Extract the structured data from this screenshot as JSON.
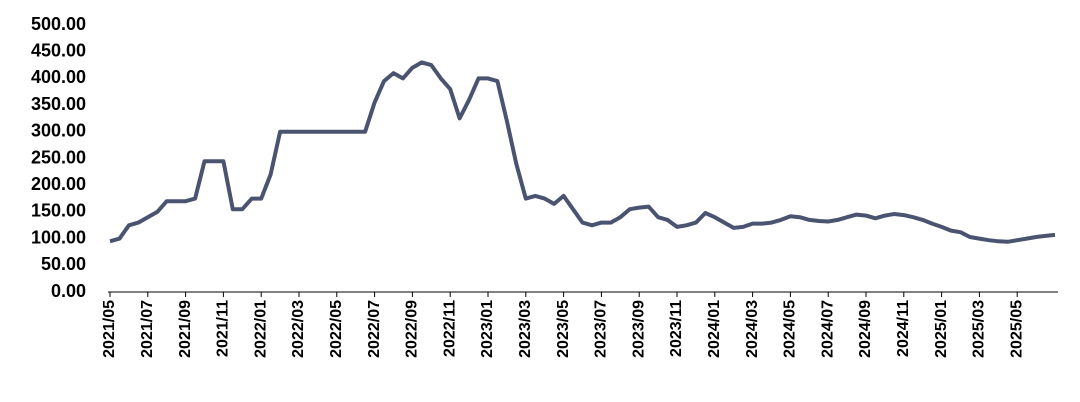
{
  "chart_data": {
    "type": "line",
    "categories": [
      "2021/05",
      null,
      null,
      null,
      "2021/07",
      null,
      null,
      null,
      "2021/09",
      null,
      null,
      null,
      "2021/11",
      null,
      null,
      null,
      "2022/01",
      null,
      null,
      null,
      "2022/03",
      null,
      null,
      null,
      "2022/05",
      null,
      null,
      null,
      "2022/07",
      null,
      null,
      null,
      "2022/09",
      null,
      null,
      null,
      "2022/11",
      null,
      null,
      null,
      "2023/01",
      null,
      null,
      null,
      "2023/03",
      null,
      null,
      null,
      "2023/05",
      null,
      null,
      null,
      "2023/07",
      null,
      null,
      null,
      "2023/09",
      null,
      null,
      null,
      "2023/11",
      null,
      null,
      null,
      "2024/01",
      null,
      null,
      null,
      "2024/03",
      null,
      null,
      null,
      "2024/05",
      null,
      null,
      null,
      "2024/07",
      null,
      null,
      null,
      "2024/09",
      null,
      null,
      null,
      "2024/11",
      null,
      null,
      null,
      "2025/01",
      null,
      null,
      null,
      "2025/03",
      null,
      null,
      null,
      "2025/05",
      null,
      null,
      null,
      null
    ],
    "values": [
      95,
      100,
      125,
      130,
      140,
      150,
      170,
      170,
      170,
      175,
      245,
      245,
      245,
      155,
      155,
      175,
      175,
      220,
      300,
      300,
      300,
      300,
      300,
      300,
      300,
      300,
      300,
      300,
      355,
      395,
      410,
      400,
      420,
      430,
      425,
      400,
      380,
      325,
      360,
      400,
      400,
      395,
      320,
      240,
      175,
      180,
      175,
      165,
      180,
      155,
      130,
      125,
      130,
      130,
      140,
      155,
      158,
      160,
      140,
      135,
      122,
      125,
      130,
      148,
      140,
      130,
      120,
      122,
      128,
      128,
      130,
      135,
      142,
      140,
      135,
      133,
      132,
      135,
      140,
      145,
      143,
      138,
      143,
      146,
      144,
      140,
      135,
      128,
      122,
      115,
      112,
      103,
      100,
      97,
      95,
      94,
      97,
      100,
      103,
      105,
      107
    ],
    "color": "#4a5470",
    "ylim": [
      0,
      500
    ],
    "yticks": [
      {
        "value": 0,
        "label": "0.00"
      },
      {
        "value": 50,
        "label": "50.00"
      },
      {
        "value": 100,
        "label": "100.00"
      },
      {
        "value": 150,
        "label": "150.00"
      },
      {
        "value": 200,
        "label": "200.00"
      },
      {
        "value": 250,
        "label": "250.00"
      },
      {
        "value": 300,
        "label": "300.00"
      },
      {
        "value": 350,
        "label": "350.00"
      },
      {
        "value": 400,
        "label": "400.00"
      },
      {
        "value": 450,
        "label": "450.00"
      },
      {
        "value": 500,
        "label": "500.00"
      }
    ],
    "grid": false
  }
}
